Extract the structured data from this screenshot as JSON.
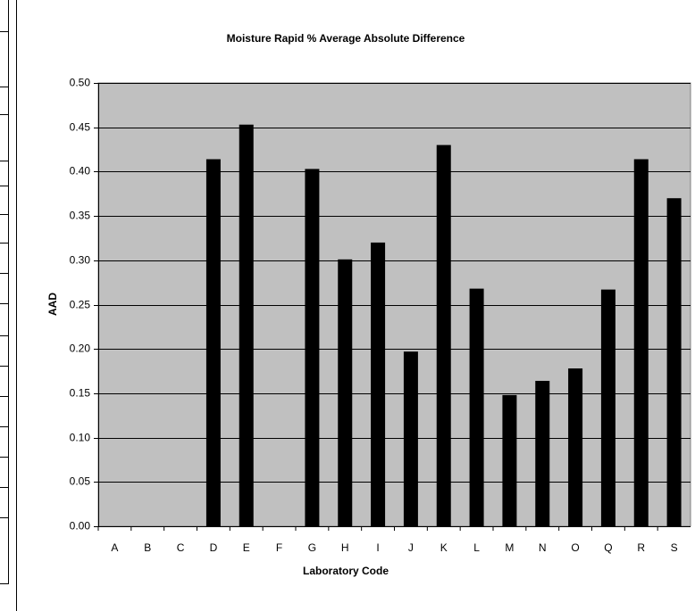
{
  "chart_data": {
    "type": "bar",
    "title": "Moisture Rapid % Average Absolute Difference",
    "x_label": "Laboratory Code",
    "y_label": "AAD",
    "categories": [
      "A",
      "B",
      "C",
      "D",
      "E",
      "F",
      "G",
      "H",
      "I",
      "J",
      "K",
      "L",
      "M",
      "N",
      "O",
      "Q",
      "R",
      "S"
    ],
    "values": [
      null,
      null,
      null,
      0.414,
      0.453,
      null,
      0.403,
      0.301,
      0.32,
      0.197,
      0.43,
      0.268,
      0.148,
      0.164,
      0.178,
      0.267,
      0.414,
      0.37
    ],
    "color": "#000000",
    "plot_background": "#c0c0c0",
    "ylim": [
      0,
      0.5
    ],
    "yticks": [
      {
        "value": 0,
        "label": "0.00"
      },
      {
        "value": 0.05,
        "label": "0.05"
      },
      {
        "value": 0.1,
        "label": "0.10"
      },
      {
        "value": 0.15,
        "label": "0.15"
      },
      {
        "value": 0.2,
        "label": "0.20"
      },
      {
        "value": 0.25,
        "label": "0.25"
      },
      {
        "value": 0.3,
        "label": "0.30"
      },
      {
        "value": 0.35,
        "label": "0.35"
      },
      {
        "value": 0.4,
        "label": "0.40"
      },
      {
        "value": 0.45,
        "label": "0.45"
      },
      {
        "value": 0.5,
        "label": "0.50"
      }
    ],
    "grid": true
  }
}
